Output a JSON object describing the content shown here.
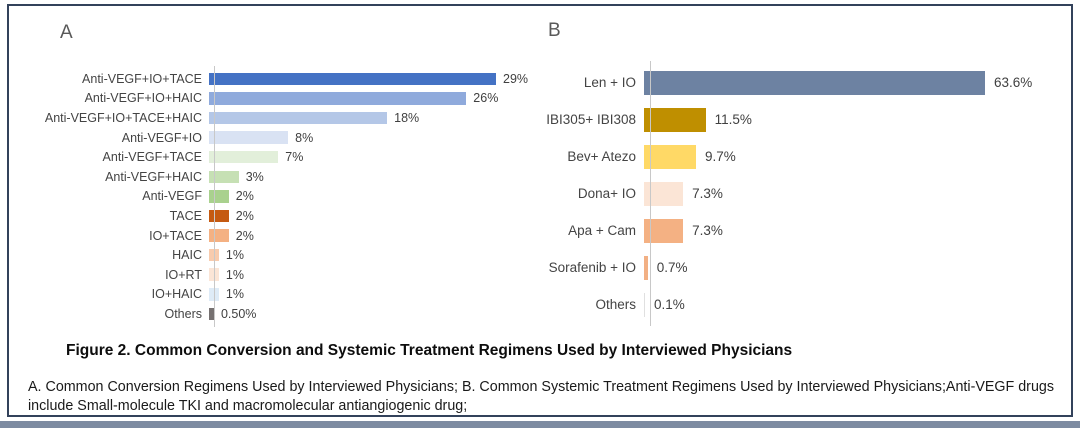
{
  "panels": {
    "a_label": "A",
    "b_label": "B"
  },
  "caption": {
    "title": "Figure 2. Common Conversion and Systemic Treatment Regimens Used by Interviewed Physicians",
    "note": "A. Common Conversion Regimens Used by Interviewed Physicians; B. Common Systemic Treatment Regimens Used by Interviewed Physicians;Anti-VEGF drugs include Small-molecule TKI and macromolecular antiangiogenic drug;"
  },
  "colors": {
    "frame_border": "#33425b",
    "bottom_strip": "#7d8ba1",
    "axis_line": "#c8c8c8",
    "label_text": "#444444",
    "value_text": "#404040"
  },
  "chart_data": [
    {
      "type": "bar",
      "orientation": "horizontal",
      "panel": "A",
      "title": "Common Conversion Regimens Used by Interviewed Physicians",
      "unit": "%",
      "categories": [
        "Anti-VEGF+IO+TACE",
        "Anti-VEGF+IO+HAIC",
        "Anti-VEGF+IO+TACE+HAIC",
        "Anti-VEGF+IO",
        "Anti-VEGF+TACE",
        "Anti-VEGF+HAIC",
        "Anti-VEGF",
        "TACE",
        "IO+TACE",
        "HAIC",
        "IO+RT",
        "IO+HAIC",
        "Others"
      ],
      "values": [
        29,
        26,
        18,
        8,
        7,
        3,
        2,
        2,
        2,
        1,
        1,
        1,
        0.5
      ],
      "value_labels": [
        "29%",
        "26%",
        "18%",
        "8%",
        "7%",
        "3%",
        "2%",
        "2%",
        "2%",
        "1%",
        "1%",
        "1%",
        "0.50%"
      ],
      "bar_colors": [
        "#4472c4",
        "#8faadc",
        "#b4c7e7",
        "#d9e2f3",
        "#e2efda",
        "#c6e0b4",
        "#a9d18e",
        "#c55a11",
        "#f4b183",
        "#f8cbad",
        "#fbe5d6",
        "#deebf7",
        "#767171"
      ],
      "value_axis_labels_shown": false,
      "grid": false,
      "legend": false
    },
    {
      "type": "bar",
      "orientation": "horizontal",
      "panel": "B",
      "title": "Common Systemic Treatment Regimens Used by Interviewed Physicians",
      "unit": "%",
      "categories": [
        "Len +  IO",
        "IBI305+ IBI308",
        "Bev+ Atezo",
        "Dona+ IO",
        "Apa + Cam",
        "Sorafenib + IO",
        "Others"
      ],
      "values": [
        63.6,
        11.5,
        9.7,
        7.3,
        7.3,
        0.7,
        0.1
      ],
      "value_labels": [
        "63.6%",
        "11.5%",
        "9.7%",
        "7.3%",
        "7.3%",
        "0.7%",
        "0.1%"
      ],
      "bar_colors": [
        "#6d82a2",
        "#bf8f00",
        "#ffd966",
        "#fbe5d6",
        "#f4b183",
        "#f2b084",
        "#e0e0e0"
      ],
      "value_axis_labels_shown": false,
      "grid": false,
      "legend": false
    }
  ]
}
